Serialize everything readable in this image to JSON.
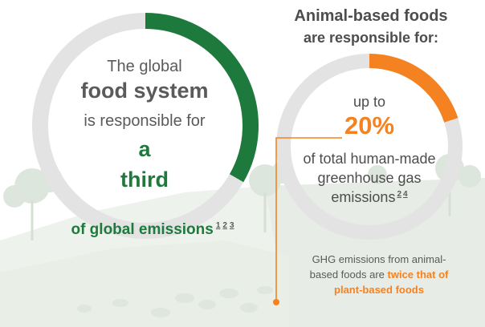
{
  "colors": {
    "green": "#1e7a3c",
    "orange": "#f58220",
    "ring_track": "#e3e3e3",
    "text_gray": "#5a5a5a"
  },
  "chart_data": [
    {
      "type": "pie",
      "labels": [
        "a third"
      ],
      "values": [
        0.333
      ],
      "title": "The global food system is responsible for a third of global emissions"
    },
    {
      "type": "pie",
      "labels": [
        "up to 20%"
      ],
      "values": [
        20
      ],
      "title": "Animal-based foods are responsible for: up to 20% of total human-made greenhouse gas emissions"
    }
  ],
  "left": {
    "line1": "The global",
    "line2": "food system",
    "line3": "is responsible for",
    "line4": "a",
    "line5": "third",
    "footer": "of global emissions",
    "refs": [
      "1",
      "2",
      "3"
    ]
  },
  "right": {
    "heading1": "Animal-based foods",
    "heading2": "are responsible for:",
    "line1": "up to",
    "percent": "20%",
    "line2": "of total human-made",
    "line3": "greenhouse gas",
    "line4": "emissions",
    "refs": [
      "2",
      "4"
    ]
  },
  "note": {
    "line1": "GHG emissions from animal-",
    "line2a": "based foods are ",
    "line2b": "twice that of",
    "line3": "plant-based foods"
  }
}
